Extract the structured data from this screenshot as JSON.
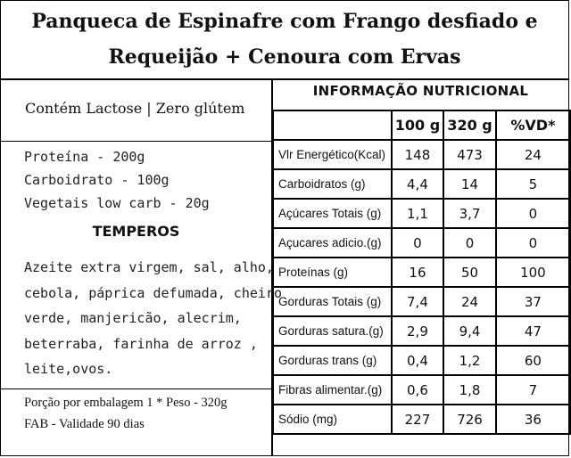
{
  "title": {
    "line1": "Panqueca de Espinafre com Frango desfiado e",
    "line2": "Requeijão + Cenoura com Ervas"
  },
  "left": {
    "lactose_label": "Contém Lactose | Zero glútem",
    "composition": [
      "Proteína  - 200g",
      "Carboidrato - 100g",
      "Vegetais low carb - 20g"
    ],
    "temperos_title": "TEMPEROS",
    "temperos_lines": [
      "Azeite extra virgem, sal, alho,",
      "cebola, páprica defumada, cheiro",
      "verde, manjericão, alecrim,",
      "beterraba, farinha de arroz ,",
      "leite,ovos."
    ],
    "porcao": "Porção por embalagem 1 * Peso - 320g",
    "validade": "FAB - Validade 90 dias"
  },
  "nutrition": {
    "title": "INFORMAÇÃO NUTRICIONAL",
    "headers": [
      "",
      "100 g",
      "320 g",
      "%VD*"
    ],
    "rows": [
      {
        "label": "Vlr Energético(Kcal)",
        "v100": "148",
        "v320": "473",
        "vd": "24"
      },
      {
        "label": "Carboidratos (g)",
        "v100": "4,4",
        "v320": "14",
        "vd": "5"
      },
      {
        "label": "Açúcares Totais (g)",
        "v100": "1,1",
        "v320": "3,7",
        "vd": "0"
      },
      {
        "label": "Açucares adicio.(g)",
        "v100": "0",
        "v320": "0",
        "vd": "0"
      },
      {
        "label": "Proteínas (g)",
        "v100": "16",
        "v320": "50",
        "vd": "100"
      },
      {
        "label": "Gorduras Totais (g)",
        "v100": "7,4",
        "v320": "24",
        "vd": "37"
      },
      {
        "label": "Gorduras satura.(g)",
        "v100": "2,9",
        "v320": "9,4",
        "vd": "47"
      },
      {
        "label": "Gorduras trans (g)",
        "v100": "0,4",
        "v320": "1,2",
        "vd": "60"
      },
      {
        "label": "Fibras alimentar.(g)",
        "v100": "0,6",
        "v320": "1,8",
        "vd": "7"
      },
      {
        "label": "Sódio (mg)",
        "v100": "227",
        "v320": "726",
        "vd": "36"
      }
    ]
  }
}
